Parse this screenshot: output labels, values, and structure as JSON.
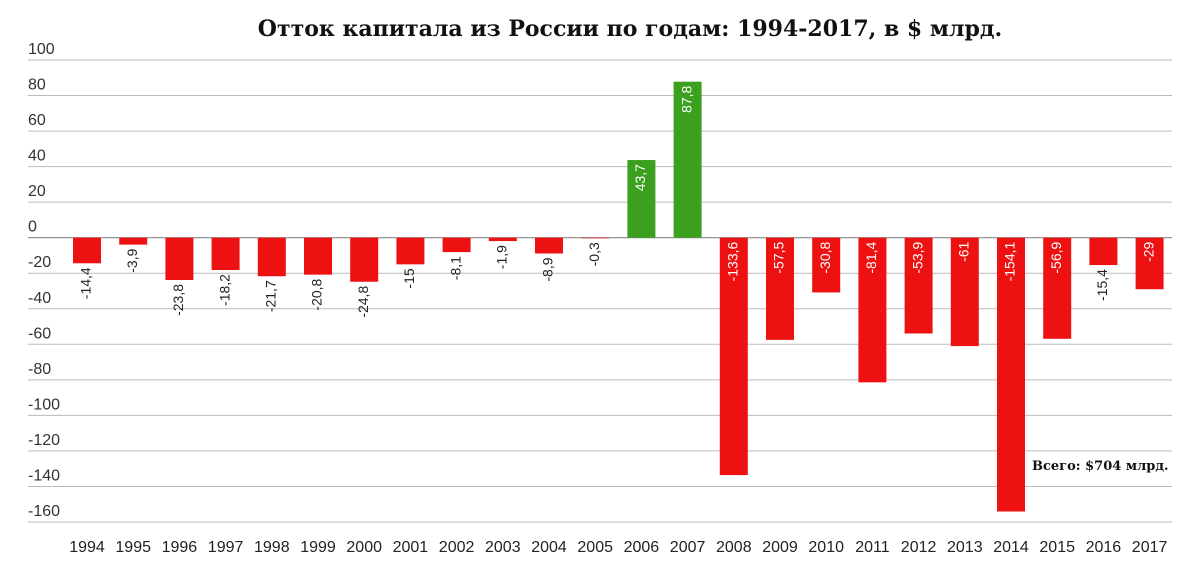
{
  "chart_data": {
    "type": "bar",
    "title": "Отток капитала из России по годам: 1994-2017, в $ млрд.",
    "annotation": "Всего: $704 млрд.",
    "categories": [
      "1994",
      "1995",
      "1996",
      "1997",
      "1998",
      "1999",
      "2000",
      "2001",
      "2002",
      "2003",
      "2004",
      "2005",
      "2006",
      "2007",
      "2008",
      "2009",
      "2010",
      "2011",
      "2012",
      "2013",
      "2014",
      "2015",
      "2016",
      "2017"
    ],
    "values": [
      -14.4,
      -3.9,
      -23.8,
      -18.2,
      -21.7,
      -20.8,
      -24.8,
      -15,
      -8.1,
      -1.9,
      -8.9,
      -0.3,
      43.7,
      87.8,
      -133.6,
      -57.5,
      -30.8,
      -81.4,
      -53.9,
      -61,
      -154.1,
      -56.9,
      -15.4,
      -29
    ],
    "value_labels": [
      "-14,4",
      "-3,9",
      "-23,8",
      "-18,2",
      "-21,7",
      "-20,8",
      "-24,8",
      "-15",
      "-8,1",
      "-1,9",
      "-8,9",
      "-0,3",
      "43,7",
      "87,8",
      "-133,6",
      "-57,5",
      "-30,8",
      "-81,4",
      "-53,9",
      "-61",
      "-154,1",
      "-56,9",
      "-15,4",
      "-29"
    ],
    "y_ticks": [
      100,
      80,
      60,
      40,
      20,
      0,
      -20,
      -40,
      -60,
      -80,
      -100,
      -120,
      -140,
      -160
    ],
    "ylim": [
      -160,
      100
    ],
    "xlabel": "",
    "ylabel": "",
    "grid": true,
    "colors": {
      "positive": "#3ba01e",
      "negative": "#ee1111",
      "grid": "#bbbbbb",
      "zero": "#888888"
    }
  }
}
